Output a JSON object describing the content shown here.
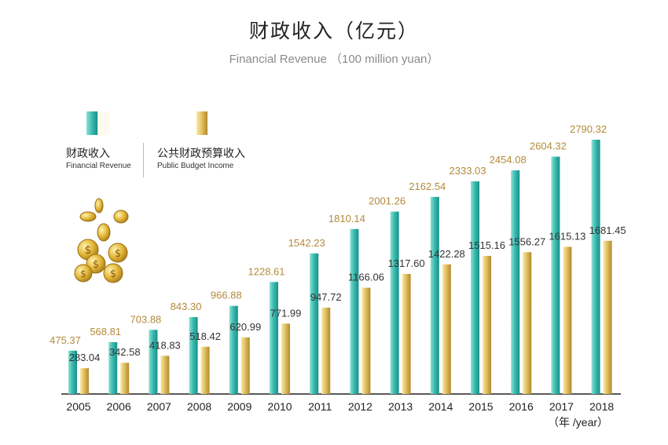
{
  "title_cn": "财政收入（亿元）",
  "title_en": "Financial Revenue （100 million yuan）",
  "x_unit_label": "（年 /year）",
  "legend": [
    {
      "name_cn": "财政收入",
      "name_en": "Financial Revenue"
    },
    {
      "name_cn": "公共财政预算收入",
      "name_en": "Public Budget Income"
    }
  ],
  "colors": {
    "teal_light": "#8ee0d6",
    "teal": "#3dbcb0",
    "teal_dark": "#16908a",
    "gold_light": "#fbe9a6",
    "gold": "#e0c064",
    "gold_dark": "#b38a2c",
    "label_gold": "#b38a3a",
    "label_dark": "#333333",
    "axis": "#222222"
  },
  "chart_data": {
    "type": "bar",
    "categories": [
      "2005",
      "2006",
      "2007",
      "2008",
      "2009",
      "2010",
      "2011",
      "2012",
      "2013",
      "2014",
      "2015",
      "2016",
      "2017",
      "2018"
    ],
    "series": [
      {
        "name": "财政收入 Financial Revenue",
        "values": [
          475.37,
          568.81,
          703.88,
          843.3,
          966.88,
          1228.61,
          1542.23,
          1810.14,
          2001.26,
          2162.54,
          2333.03,
          2454.08,
          2604.32,
          2790.32
        ]
      },
      {
        "name": "公共财政预算收入 Public Budget Income",
        "values": [
          283.04,
          342.58,
          418.83,
          518.42,
          620.99,
          771.99,
          947.72,
          1166.06,
          1317.6,
          1422.28,
          1515.16,
          1556.27,
          1615.13,
          1681.45
        ]
      }
    ],
    "labels": [
      [
        "475.37",
        "568.81",
        "703.88",
        "843.30",
        "966.88",
        "1228.61",
        "1542.23",
        "1810.14",
        "2001.26",
        "2162.54",
        "2333.03",
        "2454.08",
        "2604.32",
        "2790.32"
      ],
      [
        "283.04",
        "342.58",
        "418.83",
        "518.42",
        "620.99",
        "771.99",
        "947.72",
        "1166.06",
        "1317.60",
        "1422.28",
        "1515.16",
        "1556.27",
        "1615.13",
        "1681.45"
      ]
    ],
    "title": "财政收入（亿元）",
    "xlabel": "（年 /year）",
    "ylabel": "",
    "ylim": [
      0,
      2790.32
    ],
    "grid": false,
    "legend_position": "top-left"
  }
}
